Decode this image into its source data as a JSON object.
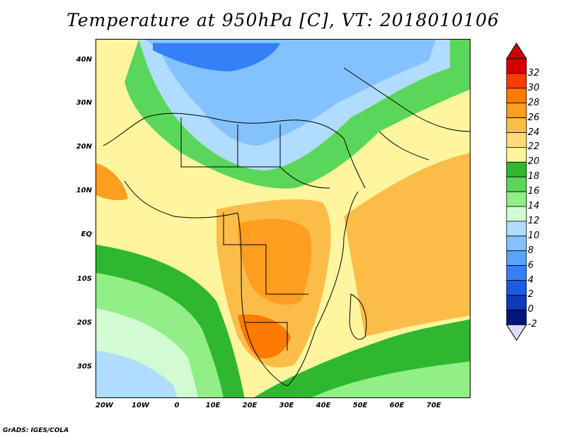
{
  "title": "Temperature at 950hPa [C], VT: 2018010106",
  "credit": "GrADS: IGES/COLA",
  "lon_ticks": [
    "20W",
    "10W",
    "0",
    "10E",
    "20E",
    "30E",
    "40E",
    "50E",
    "60E",
    "70E"
  ],
  "lat_ticks": [
    "40N",
    "30N",
    "20N",
    "10N",
    "EQ",
    "10S",
    "20S",
    "30S"
  ],
  "colorbar": {
    "labels": [
      "32",
      "30",
      "28",
      "26",
      "24",
      "22",
      "20",
      "18",
      "16",
      "14",
      "12",
      "10",
      "8",
      "6",
      "4",
      "2",
      "0",
      "-2"
    ],
    "colors": [
      "#d40000",
      "#ff3b00",
      "#ff7a00",
      "#ff9e1f",
      "#fbbd48",
      "#fddb7a",
      "#fff59f",
      "#2fb82f",
      "#5ad75a",
      "#92ee86",
      "#d2fbd2",
      "#b0dcff",
      "#84c2ff",
      "#5aa4ff",
      "#3480f7",
      "#1a5ce6",
      "#0f3ab8",
      "#05157a"
    ],
    "over_color": "#c80000",
    "under_color": "#dddcff"
  },
  "map_colors": {
    "ocean_base": "#fff59f",
    "cold_blue": "#3480f7",
    "blue": "#84c2ff",
    "light_blue": "#b0dcff",
    "pale": "#d2fbd2",
    "light_green": "#92ee86",
    "green": "#5ad75a",
    "dark_green": "#2fb82f",
    "yellow": "#fddb7a",
    "orange_light": "#fbbd48",
    "orange": "#ff9e1f",
    "red_orange": "#ff7a00"
  }
}
